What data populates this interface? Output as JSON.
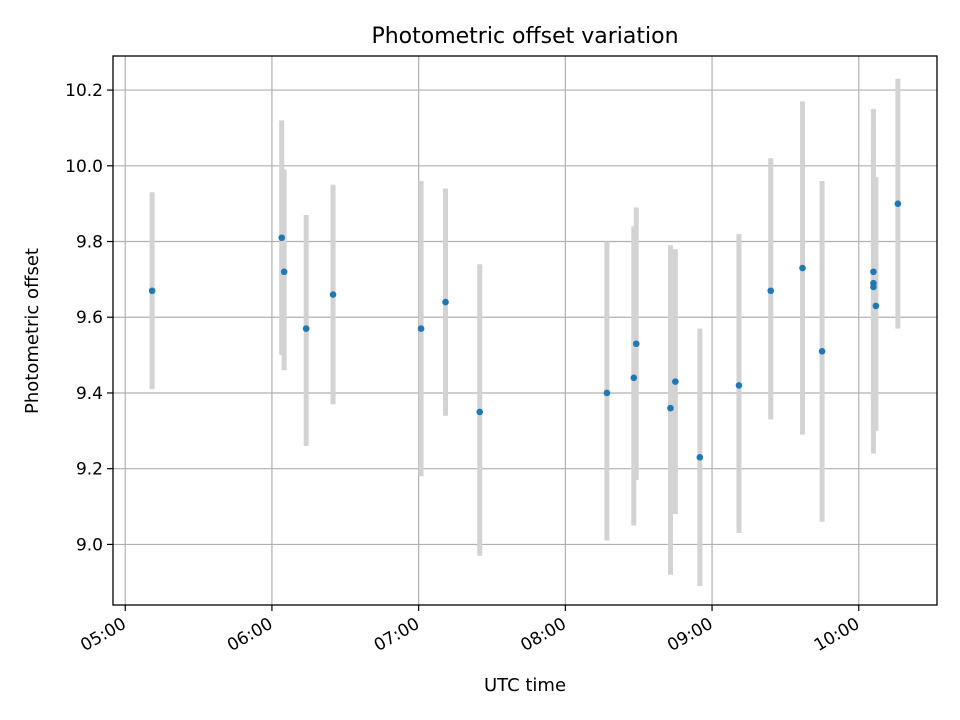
{
  "chart_data": {
    "type": "scatter",
    "title": "Photometric offset variation",
    "xlabel": "UTC time",
    "ylabel": "Photometric offset",
    "grid": true,
    "x_ticks": [
      "05:00",
      "06:00",
      "07:00",
      "08:00",
      "09:00",
      "10:00"
    ],
    "y_ticks": [
      "9.0",
      "9.2",
      "9.4",
      "9.6",
      "9.8",
      "10.0",
      "10.2"
    ],
    "xlim": [
      "04:55",
      "10:32"
    ],
    "ylim": [
      8.84,
      10.29
    ],
    "colors": {
      "point": "#1f77b4",
      "errorbar": "#d3d3d3"
    },
    "points": [
      {
        "time": "05:11",
        "y": 9.67,
        "ylow": 9.41,
        "yhigh": 9.93
      },
      {
        "time": "06:04",
        "y": 9.81,
        "ylow": 9.5,
        "yhigh": 10.12
      },
      {
        "time": "06:05",
        "y": 9.72,
        "ylow": 9.46,
        "yhigh": 9.99
      },
      {
        "time": "06:14",
        "y": 9.57,
        "ylow": 9.26,
        "yhigh": 9.87
      },
      {
        "time": "06:25",
        "y": 9.66,
        "ylow": 9.37,
        "yhigh": 9.95
      },
      {
        "time": "07:01",
        "y": 9.57,
        "ylow": 9.18,
        "yhigh": 9.96
      },
      {
        "time": "07:11",
        "y": 9.64,
        "ylow": 9.34,
        "yhigh": 9.94
      },
      {
        "time": "07:25",
        "y": 9.35,
        "ylow": 8.97,
        "yhigh": 9.74
      },
      {
        "time": "08:17",
        "y": 9.4,
        "ylow": 9.01,
        "yhigh": 9.8
      },
      {
        "time": "08:28",
        "y": 9.44,
        "ylow": 9.05,
        "yhigh": 9.84
      },
      {
        "time": "08:29",
        "y": 9.53,
        "ylow": 9.17,
        "yhigh": 9.89
      },
      {
        "time": "08:43",
        "y": 9.36,
        "ylow": 8.92,
        "yhigh": 9.79
      },
      {
        "time": "08:45",
        "y": 9.43,
        "ylow": 9.08,
        "yhigh": 9.78
      },
      {
        "time": "08:55",
        "y": 9.23,
        "ylow": 8.89,
        "yhigh": 9.57
      },
      {
        "time": "09:11",
        "y": 9.42,
        "ylow": 9.03,
        "yhigh": 9.82
      },
      {
        "time": "09:24",
        "y": 9.67,
        "ylow": 9.33,
        "yhigh": 10.02
      },
      {
        "time": "09:37",
        "y": 9.73,
        "ylow": 9.29,
        "yhigh": 10.17
      },
      {
        "time": "09:45",
        "y": 9.51,
        "ylow": 9.06,
        "yhigh": 9.96
      },
      {
        "time": "10:06",
        "y": 9.72,
        "ylow": 9.29,
        "yhigh": 10.15
      },
      {
        "time": "10:06",
        "y": 9.68,
        "ylow": 9.24,
        "yhigh": 10.11
      },
      {
        "time": "10:06",
        "y": 9.69,
        "ylow": 9.36,
        "yhigh": 10.02
      },
      {
        "time": "10:07",
        "y": 9.63,
        "ylow": 9.3,
        "yhigh": 9.97
      },
      {
        "time": "10:16",
        "y": 9.9,
        "ylow": 9.57,
        "yhigh": 10.23
      }
    ]
  }
}
